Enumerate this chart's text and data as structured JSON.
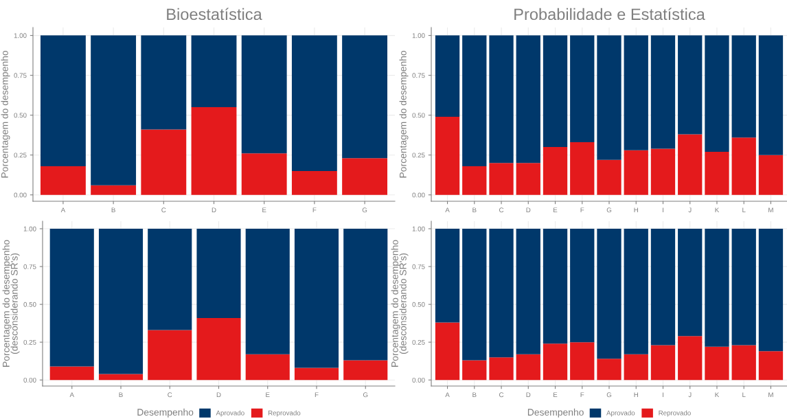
{
  "chart_data": [
    {
      "type": "bar",
      "title": "Bioestatística",
      "ylabel": "Porcentagem do desempenho",
      "stacked": true,
      "categories": [
        "A",
        "B",
        "C",
        "D",
        "E",
        "F",
        "G"
      ],
      "series": [
        {
          "color": "#e41a1c",
          "values": [
            0.18,
            0.06,
            0.41,
            0.55,
            0.26,
            0.15,
            0.23
          ]
        },
        {
          "color": "#00386b",
          "values": [
            0.82,
            0.94,
            0.59,
            0.45,
            0.74,
            0.85,
            0.77
          ]
        }
      ],
      "ylim": [
        -0.04,
        1.05
      ],
      "yticks": [
        {
          "value": 0,
          "label": "0.00"
        },
        {
          "value": 0.25,
          "label": "0.25"
        },
        {
          "value": 0.5,
          "label": "0.50"
        },
        {
          "value": 0.75,
          "label": "0.75"
        },
        {
          "value": 1,
          "label": "1.00"
        }
      ],
      "grid": true,
      "legend": false
    },
    {
      "type": "bar",
      "title": "Probabilidade e Estatística",
      "ylabel": "Porcentagem do desempenho",
      "stacked": true,
      "categories": [
        "A",
        "B",
        "C",
        "D",
        "E",
        "F",
        "G",
        "H",
        "I",
        "J",
        "K",
        "L",
        "M"
      ],
      "series": [
        {
          "color": "#e41a1c",
          "values": [
            0.49,
            0.18,
            0.2,
            0.2,
            0.3,
            0.33,
            0.22,
            0.28,
            0.29,
            0.38,
            0.27,
            0.36,
            0.25
          ]
        },
        {
          "color": "#00386b",
          "values": [
            0.51,
            0.82,
            0.8,
            0.8,
            0.7,
            0.67,
            0.78,
            0.72,
            0.71,
            0.62,
            0.73,
            0.64,
            0.75
          ]
        }
      ],
      "ylim": [
        -0.04,
        1.05
      ],
      "yticks": [
        {
          "value": 0,
          "label": "0.00"
        },
        {
          "value": 0.25,
          "label": "0.25"
        },
        {
          "value": 0.5,
          "label": "0.50"
        },
        {
          "value": 0.75,
          "label": "0.75"
        },
        {
          "value": 1,
          "label": "1.00"
        }
      ],
      "grid": true,
      "legend": false
    },
    {
      "type": "bar",
      "ylabel": "Porcentagem do desempenho\n(desconsiderando SR's)",
      "stacked": true,
      "legend_title": "Desempenho",
      "categories": [
        "A",
        "B",
        "C",
        "D",
        "E",
        "F",
        "G"
      ],
      "series": [
        {
          "name": "Reprovado",
          "color": "#e41a1c",
          "values": [
            0.09,
            0.04,
            0.33,
            0.41,
            0.17,
            0.08,
            0.13
          ]
        },
        {
          "name": "Aprovado",
          "color": "#00386b",
          "values": [
            0.91,
            0.96,
            0.67,
            0.59,
            0.83,
            0.92,
            0.87
          ]
        }
      ],
      "ylim": [
        -0.04,
        1.05
      ],
      "yticks": [
        {
          "value": 0,
          "label": "0.00"
        },
        {
          "value": 0.25,
          "label": "0.25"
        },
        {
          "value": 0.5,
          "label": "0.50"
        },
        {
          "value": 0.75,
          "label": "0.75"
        },
        {
          "value": 1,
          "label": "1.00"
        }
      ],
      "grid": true,
      "legend": "bottom"
    },
    {
      "type": "bar",
      "ylabel": "Porcentagem do desempenho\n(desconsiderando SR's)",
      "stacked": true,
      "legend_title": "Desempenho",
      "categories": [
        "A",
        "B",
        "C",
        "D",
        "E",
        "F",
        "G",
        "H",
        "I",
        "J",
        "K",
        "L",
        "M"
      ],
      "series": [
        {
          "name": "Reprovado",
          "color": "#e41a1c",
          "values": [
            0.38,
            0.13,
            0.15,
            0.17,
            0.24,
            0.25,
            0.14,
            0.17,
            0.23,
            0.29,
            0.22,
            0.23,
            0.19
          ]
        },
        {
          "name": "Aprovado",
          "color": "#00386b",
          "values": [
            0.62,
            0.87,
            0.85,
            0.83,
            0.76,
            0.75,
            0.86,
            0.83,
            0.77,
            0.71,
            0.78,
            0.77,
            0.81
          ]
        }
      ],
      "ylim": [
        -0.04,
        1.05
      ],
      "yticks": [
        {
          "value": 0,
          "label": "0.00"
        },
        {
          "value": 0.25,
          "label": "0.25"
        },
        {
          "value": 0.5,
          "label": "0.50"
        },
        {
          "value": 0.75,
          "label": "0.75"
        },
        {
          "value": 1,
          "label": "1.00"
        }
      ],
      "grid": true,
      "legend": "bottom"
    }
  ]
}
